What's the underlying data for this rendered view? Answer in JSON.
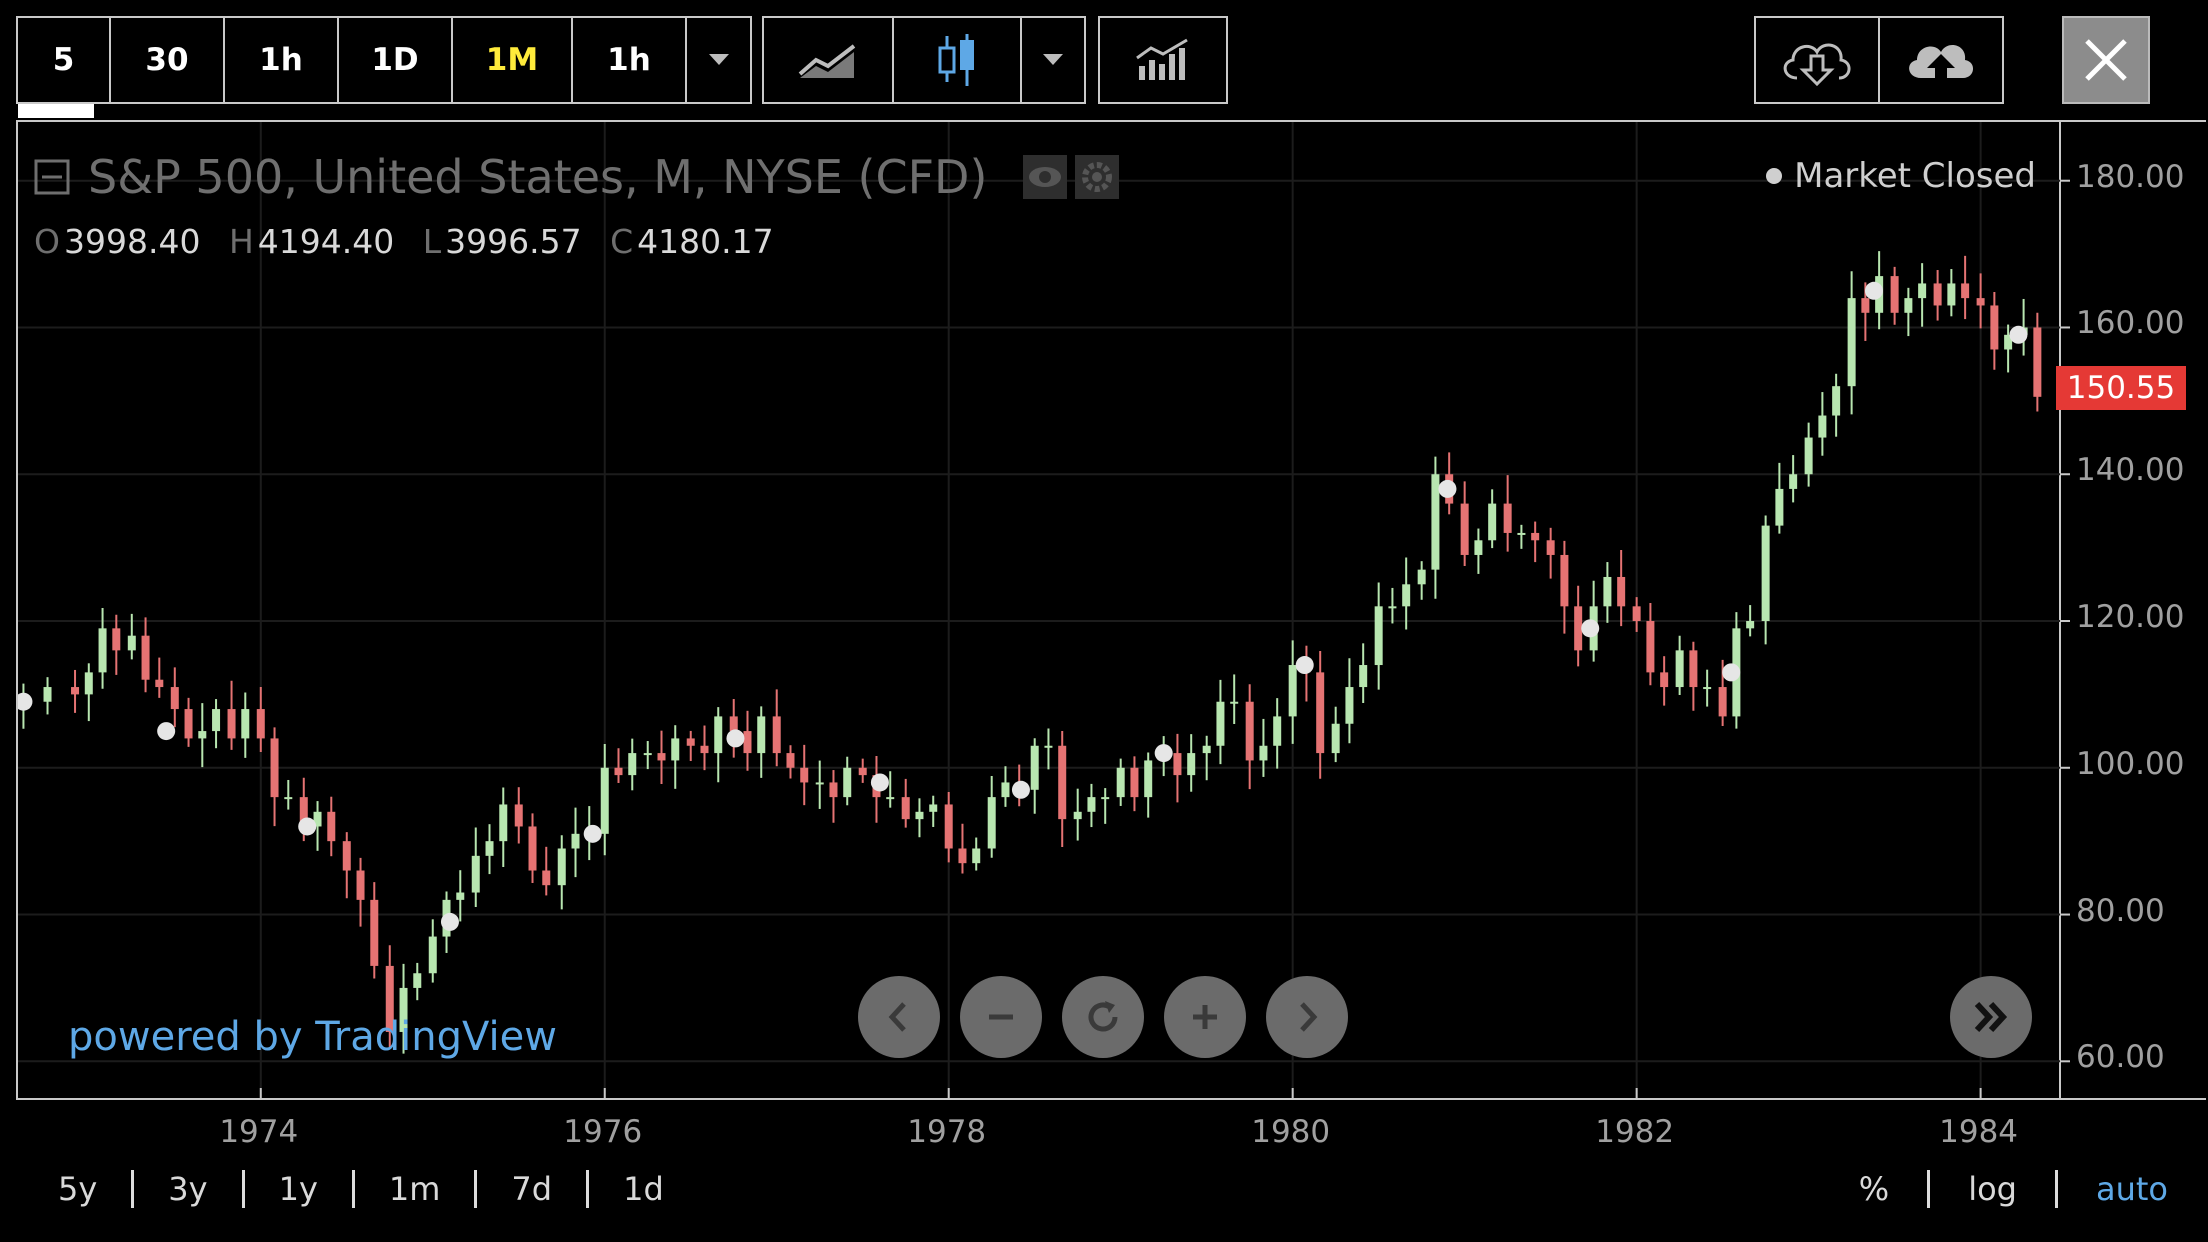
{
  "toolbar": {
    "intervals": [
      {
        "label": "5",
        "active": false
      },
      {
        "label": "30",
        "active": false
      },
      {
        "label": "1h",
        "active": false
      },
      {
        "label": "1D",
        "active": false
      },
      {
        "label": "1M",
        "active": true
      },
      {
        "label": "1h",
        "active": false
      }
    ],
    "icons": {
      "interval_dropdown": "chevron-down-icon",
      "line_chart": "line-chart-icon",
      "candles": "candlestick-icon",
      "style_dropdown": "chevron-down-icon",
      "indicators": "indicators-icon",
      "download": "cloud-download-icon",
      "upload": "cloud-upload-icon",
      "close": "close-icon"
    }
  },
  "legend": {
    "symbol": "S&P 500, United States, M, NYSE (CFD)",
    "open_key": "O",
    "open": "3998.40",
    "high_key": "H",
    "high": "4194.40",
    "low_key": "L",
    "low": "3996.57",
    "close_key": "C",
    "close": "4180.17"
  },
  "status": "Market Closed",
  "price_tag": "150.55",
  "watermark": "powered by TradingView",
  "range_buttons": [
    "5y",
    "3y",
    "1y",
    "1m",
    "7d",
    "1d"
  ],
  "mode_buttons": [
    {
      "label": "%",
      "active": false
    },
    {
      "label": "log",
      "active": false
    },
    {
      "label": "auto",
      "active": true
    }
  ],
  "colors": {
    "up": "#b8e6b0",
    "down": "#e57373",
    "accent": "#5ea8e6",
    "price_tag": "#e53935"
  },
  "chart_data": {
    "type": "candlestick",
    "y_ticks": [
      "180.00",
      "160.00",
      "140.00",
      "120.00",
      "100.00",
      "80.00",
      "60.00"
    ],
    "x_ticks": [
      "1974",
      "1976",
      "1978",
      "1980",
      "1982",
      "1984"
    ],
    "ylim": [
      55,
      188
    ],
    "xlim": [
      1972.6,
      1984.45
    ],
    "last_value": 150.55,
    "closes": [
      [
        1972.62,
        109
      ],
      [
        1972.76,
        111
      ],
      [
        1972.92,
        110
      ],
      [
        1973.0,
        113
      ],
      [
        1973.08,
        119
      ],
      [
        1973.16,
        116
      ],
      [
        1973.25,
        118
      ],
      [
        1973.33,
        112
      ],
      [
        1973.41,
        111
      ],
      [
        1973.5,
        108
      ],
      [
        1973.58,
        104
      ],
      [
        1973.66,
        105
      ],
      [
        1973.74,
        108
      ],
      [
        1973.83,
        104
      ],
      [
        1973.91,
        108
      ],
      [
        1974.0,
        104
      ],
      [
        1974.08,
        96
      ],
      [
        1974.16,
        96
      ],
      [
        1974.25,
        92
      ],
      [
        1974.33,
        94
      ],
      [
        1974.41,
        90
      ],
      [
        1974.5,
        86
      ],
      [
        1974.58,
        82
      ],
      [
        1974.66,
        73
      ],
      [
        1974.75,
        64
      ],
      [
        1974.83,
        70
      ],
      [
        1974.91,
        72
      ],
      [
        1975.0,
        77
      ],
      [
        1975.08,
        82
      ],
      [
        1975.16,
        83
      ],
      [
        1975.25,
        88
      ],
      [
        1975.33,
        90
      ],
      [
        1975.41,
        95
      ],
      [
        1975.5,
        92
      ],
      [
        1975.58,
        86
      ],
      [
        1975.66,
        84
      ],
      [
        1975.75,
        89
      ],
      [
        1975.83,
        91
      ],
      [
        1975.91,
        91
      ],
      [
        1976.0,
        100
      ],
      [
        1976.08,
        99
      ],
      [
        1976.16,
        102
      ],
      [
        1976.25,
        102
      ],
      [
        1976.33,
        101
      ],
      [
        1976.41,
        104
      ],
      [
        1976.5,
        103
      ],
      [
        1976.58,
        102
      ],
      [
        1976.66,
        107
      ],
      [
        1976.75,
        105
      ],
      [
        1976.83,
        102
      ],
      [
        1976.91,
        107
      ],
      [
        1977.0,
        102
      ],
      [
        1977.08,
        100
      ],
      [
        1977.16,
        98
      ],
      [
        1977.25,
        98
      ],
      [
        1977.33,
        96
      ],
      [
        1977.41,
        100
      ],
      [
        1977.5,
        99
      ],
      [
        1977.58,
        96
      ],
      [
        1977.66,
        96
      ],
      [
        1977.75,
        93
      ],
      [
        1977.83,
        94
      ],
      [
        1977.91,
        95
      ],
      [
        1978.0,
        89
      ],
      [
        1978.08,
        87
      ],
      [
        1978.16,
        89
      ],
      [
        1978.25,
        96
      ],
      [
        1978.33,
        98
      ],
      [
        1978.41,
        97
      ],
      [
        1978.5,
        103
      ],
      [
        1978.58,
        103
      ],
      [
        1978.66,
        93
      ],
      [
        1978.75,
        94
      ],
      [
        1978.83,
        96
      ],
      [
        1978.91,
        96
      ],
      [
        1979.0,
        100
      ],
      [
        1979.08,
        96
      ],
      [
        1979.16,
        101
      ],
      [
        1979.25,
        102
      ],
      [
        1979.33,
        99
      ],
      [
        1979.41,
        102
      ],
      [
        1979.5,
        103
      ],
      [
        1979.58,
        109
      ],
      [
        1979.66,
        109
      ],
      [
        1979.75,
        101
      ],
      [
        1979.83,
        103
      ],
      [
        1979.91,
        107
      ],
      [
        1980.0,
        114
      ],
      [
        1980.08,
        113
      ],
      [
        1980.16,
        102
      ],
      [
        1980.25,
        106
      ],
      [
        1980.33,
        111
      ],
      [
        1980.41,
        114
      ],
      [
        1980.5,
        122
      ],
      [
        1980.58,
        122
      ],
      [
        1980.66,
        125
      ],
      [
        1980.75,
        127
      ],
      [
        1980.83,
        140
      ],
      [
        1980.91,
        136
      ],
      [
        1981.0,
        129
      ],
      [
        1981.08,
        131
      ],
      [
        1981.16,
        136
      ],
      [
        1981.25,
        132
      ],
      [
        1981.33,
        132
      ],
      [
        1981.41,
        131
      ],
      [
        1981.5,
        129
      ],
      [
        1981.58,
        122
      ],
      [
        1981.66,
        116
      ],
      [
        1981.75,
        122
      ],
      [
        1981.83,
        126
      ],
      [
        1981.91,
        122
      ],
      [
        1982.0,
        120
      ],
      [
        1982.08,
        113
      ],
      [
        1982.16,
        111
      ],
      [
        1982.25,
        116
      ],
      [
        1982.33,
        111
      ],
      [
        1982.41,
        111
      ],
      [
        1982.5,
        107
      ],
      [
        1982.58,
        119
      ],
      [
        1982.66,
        120
      ],
      [
        1982.75,
        133
      ],
      [
        1982.83,
        138
      ],
      [
        1982.91,
        140
      ],
      [
        1983.0,
        145
      ],
      [
        1983.08,
        148
      ],
      [
        1983.16,
        152
      ],
      [
        1983.25,
        164
      ],
      [
        1983.33,
        162
      ],
      [
        1983.41,
        167
      ],
      [
        1983.5,
        162
      ],
      [
        1983.58,
        164
      ],
      [
        1983.66,
        166
      ],
      [
        1983.75,
        163
      ],
      [
        1983.83,
        166
      ],
      [
        1983.91,
        164
      ],
      [
        1984.0,
        163
      ],
      [
        1984.08,
        157
      ],
      [
        1984.16,
        159
      ],
      [
        1984.25,
        160
      ],
      [
        1984.33,
        150.55
      ]
    ],
    "markers": [
      [
        1972.62,
        109
      ],
      [
        1973.45,
        105
      ],
      [
        1974.27,
        92
      ],
      [
        1975.1,
        79
      ],
      [
        1975.93,
        91
      ],
      [
        1976.76,
        104
      ],
      [
        1977.6,
        98
      ],
      [
        1978.42,
        97
      ],
      [
        1979.25,
        102
      ],
      [
        1980.07,
        114
      ],
      [
        1980.9,
        138
      ],
      [
        1981.73,
        119
      ],
      [
        1982.55,
        113
      ],
      [
        1983.38,
        165
      ],
      [
        1984.22,
        159
      ]
    ]
  }
}
